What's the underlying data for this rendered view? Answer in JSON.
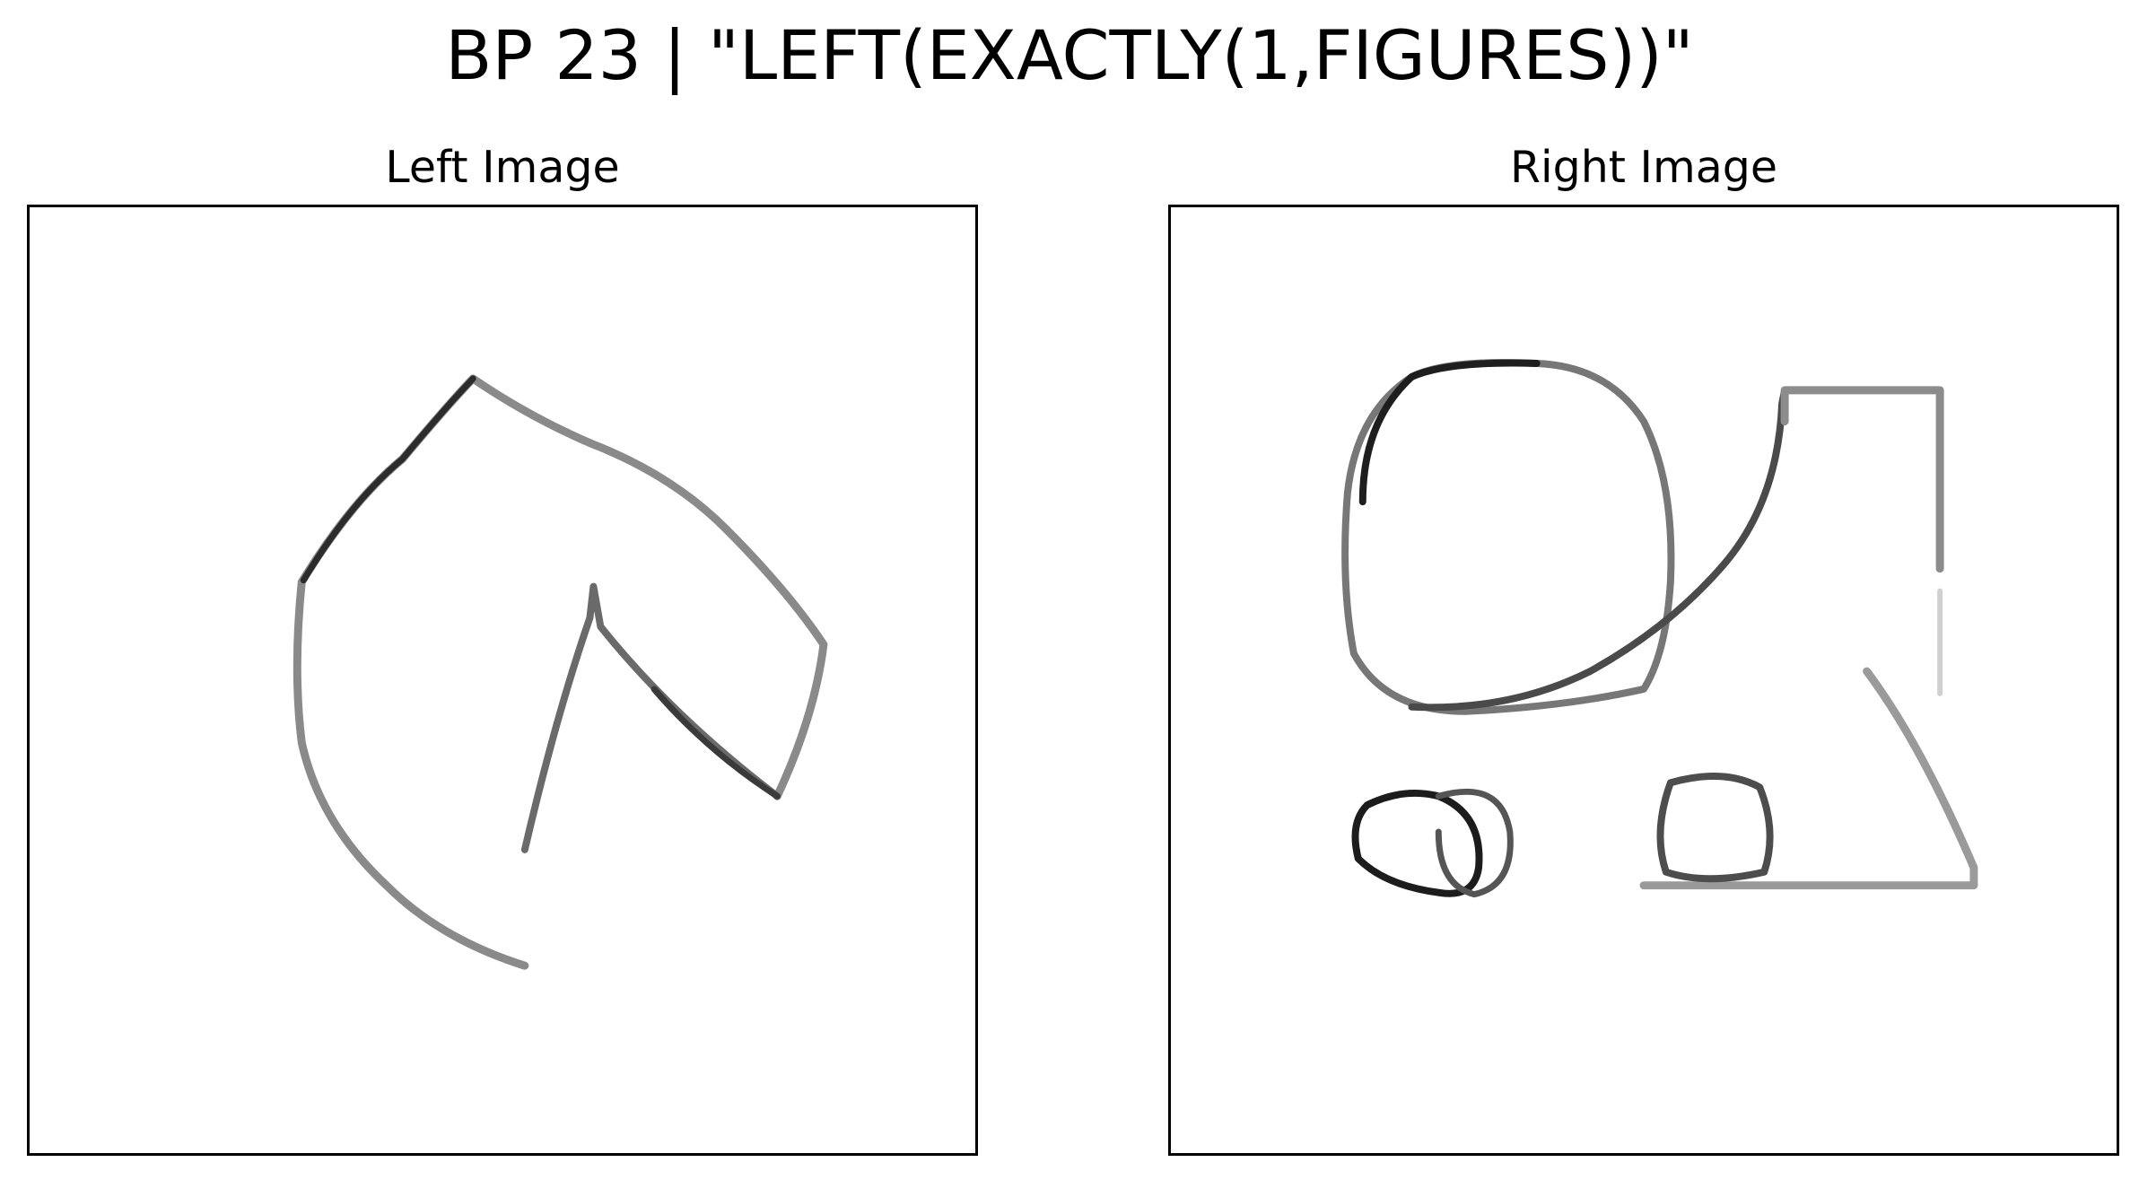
{
  "title": "BP 23 | \"LEFT(EXACTLY(1,FIGURES))\"",
  "panels": {
    "left": {
      "title": "Left Image"
    },
    "right": {
      "title": "Right Image"
    }
  },
  "colors": {
    "background": "#ffffff",
    "frame": "#000000",
    "ink_dark": "#1a1a1a",
    "ink_mid": "#6e6e6e",
    "ink_light": "#b4b4b4"
  }
}
